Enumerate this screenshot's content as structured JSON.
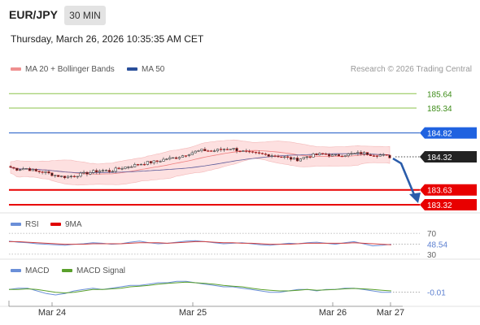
{
  "header": {
    "pair": "EUR/JPY",
    "timeframe": "30 MIN",
    "datetime": "Thursday, March 26, 2026 10:35:35 AM CET"
  },
  "legend": {
    "ma20": "MA 20 + Bollinger Bands",
    "ma50": "MA 50",
    "credit": "Research © 2026 Trading Central"
  },
  "colors": {
    "resistance": "#8bc34a",
    "pivot": "#1a56c4",
    "support": "#e80000",
    "bollinger_fill": "#fde0e0",
    "ma20": "#ef7f7f",
    "ma50": "#5b5b9a",
    "arrow": "#2a5caa",
    "rsi": "#6a8fd8",
    "rsi_ma": "#d04040",
    "macd": "#6a8fd8",
    "macd_signal": "#5aa02c"
  },
  "chart_data": [
    {
      "type": "candlestick",
      "x_labels": [
        "Mar 24",
        "Mar 25",
        "Mar 26",
        "Mar 27"
      ],
      "ylim": [
        183.15,
        185.95
      ],
      "price_path": [
        184.12,
        184.06,
        184.08,
        184.02,
        184.0,
        183.94,
        183.9,
        183.92,
        183.96,
        184.0,
        184.04,
        184.02,
        184.08,
        184.12,
        184.16,
        184.2,
        184.22,
        184.28,
        184.3,
        184.36,
        184.42,
        184.46,
        184.44,
        184.48,
        184.5,
        184.44,
        184.4,
        184.38,
        184.36,
        184.34,
        184.3,
        184.26,
        184.32,
        184.36,
        184.38,
        184.34,
        184.36,
        184.38,
        184.4,
        184.37,
        184.36,
        184.32
      ],
      "levels": [
        {
          "label": "185.64",
          "value": 185.64,
          "kind": "resistance"
        },
        {
          "label": "185.34",
          "value": 185.34,
          "kind": "resistance"
        },
        {
          "label": "184.82",
          "value": 184.82,
          "kind": "pivot"
        },
        {
          "label": "184.32",
          "value": 184.32,
          "kind": "last"
        },
        {
          "label": "183.63",
          "value": 183.63,
          "kind": "support"
        },
        {
          "label": "183.32",
          "value": 183.32,
          "kind": "support"
        }
      ],
      "forecast": {
        "from": 184.32,
        "to": 183.32
      }
    },
    {
      "type": "line",
      "legend": [
        "RSI",
        "9MA"
      ],
      "levels": [
        "70",
        "30"
      ],
      "ylim": [
        25,
        75
      ],
      "current_label": "48.54",
      "rsi": [
        55,
        53,
        52,
        50,
        49,
        48,
        47,
        49,
        50,
        52,
        51,
        49,
        50,
        53,
        55,
        52,
        50,
        51,
        53,
        55,
        56,
        54,
        52,
        50,
        51,
        52,
        50,
        48,
        47,
        49,
        51,
        50,
        52,
        53,
        51,
        49,
        52,
        54,
        50,
        46,
        47,
        49
      ],
      "rsi_ma": [
        54,
        54,
        53,
        52,
        51,
        50,
        49,
        49,
        49,
        50,
        50,
        50,
        50,
        51,
        52,
        52,
        52,
        51,
        52,
        53,
        54,
        54,
        53,
        52,
        52,
        51,
        51,
        50,
        49,
        49,
        49,
        50,
        51,
        51,
        51,
        51,
        51,
        52,
        51,
        50,
        49,
        48
      ]
    },
    {
      "type": "line",
      "legend": [
        "MACD",
        "MACD Signal"
      ],
      "current_label": "-0.01",
      "ylim": [
        -0.09,
        0.09
      ],
      "macd": [
        0.01,
        0.02,
        0.02,
        0.0,
        -0.02,
        -0.03,
        -0.02,
        0.0,
        0.01,
        0.02,
        0.01,
        0.02,
        0.03,
        0.04,
        0.04,
        0.05,
        0.06,
        0.06,
        0.07,
        0.07,
        0.06,
        0.05,
        0.04,
        0.03,
        0.03,
        0.02,
        0.01,
        0.0,
        -0.01,
        -0.01,
        0.0,
        0.01,
        0.01,
        0.0,
        0.01,
        0.01,
        0.02,
        0.02,
        0.01,
        0.0,
        -0.01,
        -0.01
      ],
      "signal": [
        0.01,
        0.01,
        0.015,
        0.01,
        0.0,
        -0.01,
        -0.015,
        -0.01,
        0.0,
        0.01,
        0.01,
        0.015,
        0.02,
        0.03,
        0.035,
        0.04,
        0.05,
        0.055,
        0.06,
        0.065,
        0.06,
        0.055,
        0.05,
        0.04,
        0.035,
        0.03,
        0.02,
        0.01,
        0.005,
        0.0,
        0.0,
        0.005,
        0.01,
        0.005,
        0.008,
        0.01,
        0.015,
        0.018,
        0.015,
        0.01,
        0.005,
        0.0
      ]
    }
  ],
  "sub_legend": {
    "rsi": "RSI",
    "rsi_ma": "9MA",
    "macd": "MACD",
    "macd_signal": "MACD Signal"
  }
}
